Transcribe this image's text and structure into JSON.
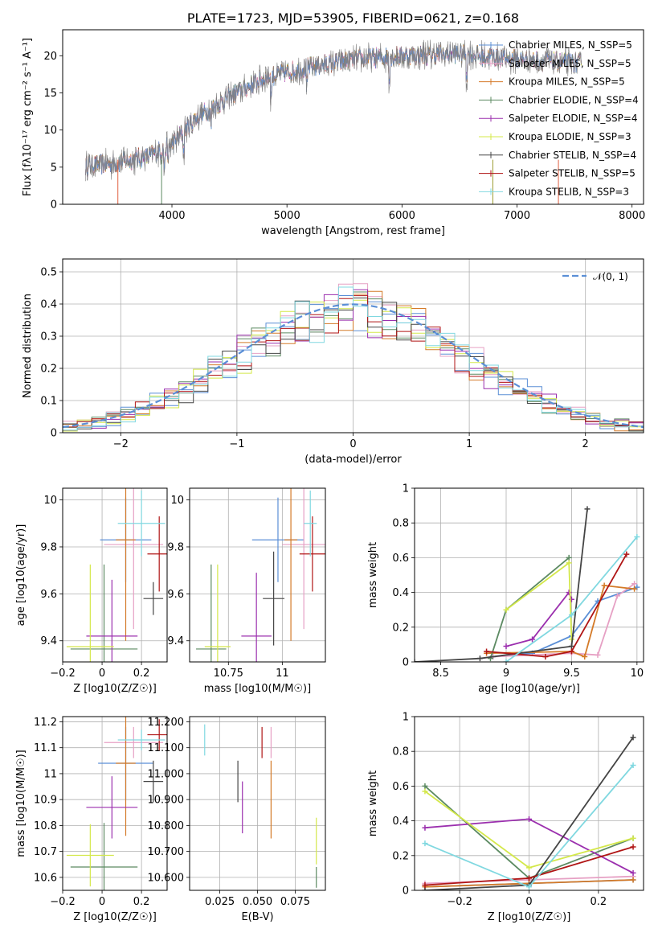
{
  "chart_data": [
    {
      "id": "spectrum",
      "type": "line",
      "title": "PLATE=1723, MJD=53905, FIBERID=0621, z=0.168",
      "xlabel": "wavelength [Angstrom, rest frame]",
      "ylabel": "Flux [fλ10⁻¹⁷ erg cm⁻² s⁻¹ A⁻¹]",
      "xlim": [
        3050,
        8100
      ],
      "ylim": [
        0,
        23.5
      ],
      "xticks": [
        4000,
        5000,
        6000,
        7000,
        8000
      ],
      "yticks": [
        0,
        5,
        10,
        15,
        20
      ],
      "grid": false,
      "legend_position": "top-right",
      "continuum": {
        "x": [
          3250,
          3500,
          3800,
          4000,
          4200,
          4500,
          4800,
          5200,
          5600,
          6000,
          6500,
          7000,
          7500
        ],
        "y": [
          5.2,
          5.5,
          6.5,
          8.0,
          11.5,
          14.5,
          17.0,
          18.5,
          19.5,
          20.0,
          20.3,
          19.5,
          19.0
        ]
      },
      "series": [
        {
          "name": "Chabrier MILES, N_SSP=5",
          "color": "#5b8fd6"
        },
        {
          "name": "Salpeter MILES, N_SSP=5",
          "color": "#e6a0c4"
        },
        {
          "name": "Kroupa MILES, N_SSP=5",
          "color": "#d47a28"
        },
        {
          "name": "Chabrier ELODIE, N_SSP=4",
          "color": "#5c8a62"
        },
        {
          "name": "Salpeter ELODIE, N_SSP=4",
          "color": "#9b2fae"
        },
        {
          "name": "Kroupa ELODIE, N_SSP=3",
          "color": "#d4e84a"
        },
        {
          "name": "Chabrier STELIB, N_SSP=4",
          "color": "#444444"
        },
        {
          "name": "Salpeter STELIB, N_SSP=5",
          "color": "#b01515"
        },
        {
          "name": "Kroupa STELIB, N_SSP=3",
          "color": "#80d8e0"
        }
      ]
    },
    {
      "id": "residuals",
      "type": "histogram",
      "xlabel": "(data-model)/error",
      "ylabel": "Normed distribution",
      "xlim": [
        -2.5,
        2.5
      ],
      "ylim": [
        0,
        0.54
      ],
      "xticks": [
        -2,
        -1,
        0,
        1,
        2
      ],
      "yticks": [
        0.0,
        0.1,
        0.2,
        0.3,
        0.4,
        0.5
      ],
      "grid": true,
      "legend_position": "top-right",
      "reference": {
        "name": "𝒩(0, 1)",
        "color": "#5b8fd6",
        "style": "dashed"
      }
    },
    {
      "id": "z-age",
      "type": "scatter",
      "xlabel": "Z [log10(Z/Z☉)]",
      "ylabel": "age  [log10(age/yr)]",
      "xlim": [
        -0.2,
        0.33
      ],
      "ylim": [
        9.31,
        10.05
      ],
      "xticks": [
        -0.2,
        0.0,
        0.2
      ],
      "yticks": [
        9.4,
        9.6,
        9.8,
        10.0
      ],
      "grid": true,
      "points": [
        {
          "x": 0.12,
          "y": 9.83,
          "xerr": 0.13,
          "yerr": 0.18,
          "color": "#5b8fd6"
        },
        {
          "x": 0.16,
          "y": 9.81,
          "xerr": 0.15,
          "yerr": 0.36,
          "color": "#e6a0c4"
        },
        {
          "x": 0.12,
          "y": 9.83,
          "xerr": 0.05,
          "yerr": 0.43,
          "color": "#d47a28"
        },
        {
          "x": 0.01,
          "y": 9.365,
          "xerr": 0.17,
          "yerr": 0.36,
          "color": "#5c8a62"
        },
        {
          "x": 0.05,
          "y": 9.42,
          "xerr": 0.13,
          "yerr": 0.24,
          "color": "#9b2fae"
        },
        {
          "x": -0.06,
          "y": 9.375,
          "xerr": 0.12,
          "yerr": 0.35,
          "color": "#d4e84a"
        },
        {
          "x": 0.26,
          "y": 9.58,
          "xerr": 0.05,
          "yerr": 0.07,
          "color": "#444444"
        },
        {
          "x": 0.29,
          "y": 9.77,
          "xerr": 0.06,
          "yerr": 0.16,
          "color": "#b01515"
        },
        {
          "x": 0.2,
          "y": 9.9,
          "xerr": 0.12,
          "yerr": 0.14,
          "color": "#80d8e0"
        }
      ]
    },
    {
      "id": "mass-age",
      "type": "scatter",
      "xlabel": "mass [log10(M/M☉)]",
      "ylabel": "",
      "xlim": [
        10.57,
        11.2
      ],
      "ylim": [
        9.31,
        10.05
      ],
      "xticks": [
        10.75,
        11.0
      ],
      "yticks": [
        9.4,
        9.6,
        9.8,
        10.0
      ],
      "grid": true,
      "points": [
        {
          "x": 10.98,
          "y": 9.83,
          "xerr": 0.12,
          "yerr": 0.18,
          "color": "#5b8fd6"
        },
        {
          "x": 11.1,
          "y": 9.81,
          "xerr": 0.1,
          "yerr": 0.36,
          "color": "#e6a0c4"
        },
        {
          "x": 11.04,
          "y": 9.83,
          "xerr": 0.03,
          "yerr": 0.43,
          "color": "#d47a28"
        },
        {
          "x": 10.67,
          "y": 9.365,
          "xerr": 0.07,
          "yerr": 0.36,
          "color": "#5c8a62"
        },
        {
          "x": 10.88,
          "y": 9.42,
          "xerr": 0.07,
          "yerr": 0.27,
          "color": "#9b2fae"
        },
        {
          "x": 10.7,
          "y": 9.375,
          "xerr": 0.06,
          "yerr": 0.35,
          "color": "#d4e84a"
        },
        {
          "x": 10.96,
          "y": 9.58,
          "xerr": 0.05,
          "yerr": 0.2,
          "color": "#444444"
        },
        {
          "x": 11.14,
          "y": 9.77,
          "xerr": 0.06,
          "yerr": 0.16,
          "color": "#b01515"
        },
        {
          "x": 11.13,
          "y": 9.9,
          "xerr": 0.03,
          "yerr": 0.14,
          "color": "#80d8e0"
        }
      ]
    },
    {
      "id": "age-weight",
      "type": "line",
      "xlabel": "age  [log10(age/yr)]",
      "ylabel": "mass weight",
      "xlim": [
        8.3,
        10.05
      ],
      "ylim": [
        0,
        1.0
      ],
      "xticks": [
        8.5,
        9.0,
        9.5,
        10.0
      ],
      "yticks": [
        0.0,
        0.2,
        0.4,
        0.6,
        0.8,
        1.0
      ],
      "grid": true,
      "series": [
        {
          "color": "#5b8fd6",
          "x": [
            8.9,
            9.2,
            9.5,
            9.7,
            10.0
          ],
          "y": [
            0.03,
            0.05,
            0.15,
            0.35,
            0.43
          ]
        },
        {
          "color": "#e6a0c4",
          "x": [
            8.9,
            9.5,
            9.7,
            9.85,
            9.98
          ],
          "y": [
            0.03,
            0.05,
            0.04,
            0.38,
            0.45
          ]
        },
        {
          "color": "#d47a28",
          "x": [
            8.85,
            9.5,
            9.6,
            9.75,
            9.98
          ],
          "y": [
            0.05,
            0.06,
            0.03,
            0.44,
            0.42
          ]
        },
        {
          "color": "#5c8a62",
          "x": [
            8.88,
            9.0,
            9.48
          ],
          "y": [
            0.02,
            0.3,
            0.6
          ]
        },
        {
          "color": "#9b2fae",
          "x": [
            9.0,
            9.2,
            9.48,
            9.5
          ],
          "y": [
            0.09,
            0.13,
            0.4,
            0.36
          ]
        },
        {
          "color": "#d4e84a",
          "x": [
            9.0,
            9.48,
            9.5
          ],
          "y": [
            0.3,
            0.57,
            0.13
          ]
        },
        {
          "color": "#444444",
          "x": [
            8.3,
            8.8,
            9.5,
            9.62
          ],
          "y": [
            0.0,
            0.02,
            0.09,
            0.88
          ]
        },
        {
          "color": "#b01515",
          "x": [
            8.85,
            9.3,
            9.5,
            9.92
          ],
          "y": [
            0.06,
            0.03,
            0.06,
            0.62
          ]
        },
        {
          "color": "#80d8e0",
          "x": [
            9.0,
            9.5,
            10.0
          ],
          "y": [
            0.0,
            0.27,
            0.72
          ]
        }
      ]
    },
    {
      "id": "z-mass",
      "type": "scatter",
      "xlabel": "Z [log10(Z/Z☉)]",
      "ylabel": "mass [log10(M/M☉)]",
      "xlim": [
        -0.2,
        0.33
      ],
      "ylim": [
        10.55,
        11.22
      ],
      "xticks": [
        -0.2,
        0.0,
        0.2
      ],
      "yticks": [
        10.6,
        10.7,
        10.8,
        10.9,
        11.0,
        11.1,
        11.2
      ],
      "grid": true,
      "points": [
        {
          "x": 0.12,
          "y": 11.04,
          "xerr": 0.14,
          "yerr": 0.14,
          "color": "#5b8fd6"
        },
        {
          "x": 0.16,
          "y": 11.12,
          "xerr": 0.15,
          "yerr": 0.06,
          "color": "#e6a0c4"
        },
        {
          "x": 0.12,
          "y": 11.04,
          "xerr": 0.05,
          "yerr": 0.28,
          "color": "#d47a28"
        },
        {
          "x": 0.01,
          "y": 10.64,
          "xerr": 0.17,
          "yerr": 0.17,
          "color": "#5c8a62"
        },
        {
          "x": 0.05,
          "y": 10.87,
          "xerr": 0.13,
          "yerr": 0.12,
          "color": "#9b2fae"
        },
        {
          "x": -0.06,
          "y": 10.685,
          "xerr": 0.12,
          "yerr": 0.12,
          "color": "#d4e84a"
        },
        {
          "x": 0.26,
          "y": 10.97,
          "xerr": 0.05,
          "yerr": 0.08,
          "color": "#444444"
        },
        {
          "x": 0.29,
          "y": 11.15,
          "xerr": 0.06,
          "yerr": 0.06,
          "color": "#b01515"
        },
        {
          "x": 0.2,
          "y": 11.13,
          "xerr": 0.12,
          "yerr": 0.04,
          "color": "#80d8e0"
        }
      ]
    },
    {
      "id": "ebv-mass",
      "type": "errorbar",
      "xlabel": "E(B-V)",
      "ylabel": "",
      "xlim": [
        0.005,
        0.095
      ],
      "ylim": [
        10.55,
        11.22
      ],
      "xticks": [
        0.025,
        0.05,
        0.075
      ],
      "yticks": [
        10.6,
        10.7,
        10.8,
        10.9,
        11.0,
        11.1,
        11.2
      ],
      "grid": true,
      "points": [
        {
          "x": 0.015,
          "y": 11.13,
          "yerr": 0.06,
          "color": "#80d8e0"
        },
        {
          "x": 0.037,
          "y": 10.97,
          "yerr": 0.08,
          "color": "#444444"
        },
        {
          "x": 0.04,
          "y": 10.87,
          "yerr": 0.1,
          "color": "#9b2fae"
        },
        {
          "x": 0.053,
          "y": 11.12,
          "yerr": 0.06,
          "color": "#b01515"
        },
        {
          "x": 0.059,
          "y": 11.12,
          "yerr": 0.06,
          "color": "#e6a0c4"
        },
        {
          "x": 0.059,
          "y": 10.9,
          "yerr": 0.15,
          "color": "#d47a28"
        },
        {
          "x": 0.089,
          "y": 10.74,
          "yerr": 0.09,
          "color": "#d4e84a"
        },
        {
          "x": 0.089,
          "y": 10.6,
          "yerr": 0.04,
          "color": "#5c8a62"
        }
      ]
    },
    {
      "id": "z-weight",
      "type": "line",
      "xlabel": "Z [log10(Z/Z☉)]",
      "ylabel": "mass weight",
      "xlim": [
        -0.33,
        0.33
      ],
      "ylim": [
        0,
        1.0
      ],
      "xticks": [
        -0.2,
        0.0,
        0.2
      ],
      "yticks": [
        0.0,
        0.2,
        0.4,
        0.6,
        0.8,
        1.0
      ],
      "grid": true,
      "series": [
        {
          "color": "#5b8fd6",
          "x": [
            -0.3,
            0.0,
            0.3
          ],
          "y": [
            0.02,
            0.04,
            0.06
          ]
        },
        {
          "color": "#e6a0c4",
          "x": [
            -0.3,
            0.0,
            0.3
          ],
          "y": [
            0.04,
            0.06,
            0.08
          ]
        },
        {
          "color": "#d47a28",
          "x": [
            -0.3,
            0.0,
            0.3
          ],
          "y": [
            0.02,
            0.04,
            0.06
          ]
        },
        {
          "color": "#5c8a62",
          "x": [
            -0.3,
            0.0,
            0.3
          ],
          "y": [
            0.6,
            0.07,
            0.3
          ]
        },
        {
          "color": "#9b2fae",
          "x": [
            -0.3,
            0.0,
            0.3
          ],
          "y": [
            0.36,
            0.41,
            0.1
          ]
        },
        {
          "color": "#d4e84a",
          "x": [
            -0.3,
            0.0,
            0.3
          ],
          "y": [
            0.57,
            0.13,
            0.3
          ]
        },
        {
          "color": "#444444",
          "x": [
            -0.3,
            0.0,
            0.3
          ],
          "y": [
            0.0,
            0.03,
            0.88
          ]
        },
        {
          "color": "#b01515",
          "x": [
            -0.3,
            0.0,
            0.3
          ],
          "y": [
            0.03,
            0.07,
            0.25
          ]
        },
        {
          "color": "#80d8e0",
          "x": [
            -0.3,
            0.0,
            0.3
          ],
          "y": [
            0.27,
            0.02,
            0.72
          ]
        }
      ]
    }
  ]
}
